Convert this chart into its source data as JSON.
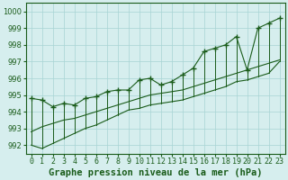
{
  "title": "Graphe pression niveau de la mer (hPa)",
  "hours": [
    0,
    1,
    2,
    3,
    4,
    5,
    6,
    7,
    8,
    9,
    10,
    11,
    12,
    13,
    14,
    15,
    16,
    17,
    18,
    19,
    20,
    21,
    22,
    23
  ],
  "high": [
    994.8,
    994.7,
    994.3,
    994.5,
    994.4,
    994.8,
    994.9,
    995.2,
    995.3,
    995.3,
    995.9,
    996.0,
    995.6,
    995.8,
    996.2,
    996.6,
    997.6,
    997.8,
    998.0,
    998.5,
    996.5,
    999.0,
    999.3,
    999.6
  ],
  "low": [
    992.0,
    991.8,
    992.1,
    992.4,
    992.7,
    993.0,
    993.2,
    993.5,
    993.8,
    994.1,
    994.2,
    994.4,
    994.5,
    994.6,
    994.7,
    994.9,
    995.1,
    995.3,
    995.5,
    995.8,
    995.9,
    996.1,
    996.3,
    997.0
  ],
  "trend": [
    992.8,
    993.1,
    993.3,
    993.5,
    993.6,
    993.8,
    994.0,
    994.2,
    994.4,
    994.6,
    994.8,
    995.0,
    995.1,
    995.2,
    995.3,
    995.5,
    995.7,
    995.9,
    996.1,
    996.3,
    996.5,
    996.7,
    996.9,
    997.1
  ],
  "line_color": "#1a5c1a",
  "bg_color": "#d6eeee",
  "grid_color": "#a8d4d4",
  "ylim": [
    991.5,
    1000.5
  ],
  "yticks": [
    992,
    993,
    994,
    995,
    996,
    997,
    998,
    999,
    1000
  ],
  "title_fontsize": 7.5,
  "tick_fontsize": 6.0
}
